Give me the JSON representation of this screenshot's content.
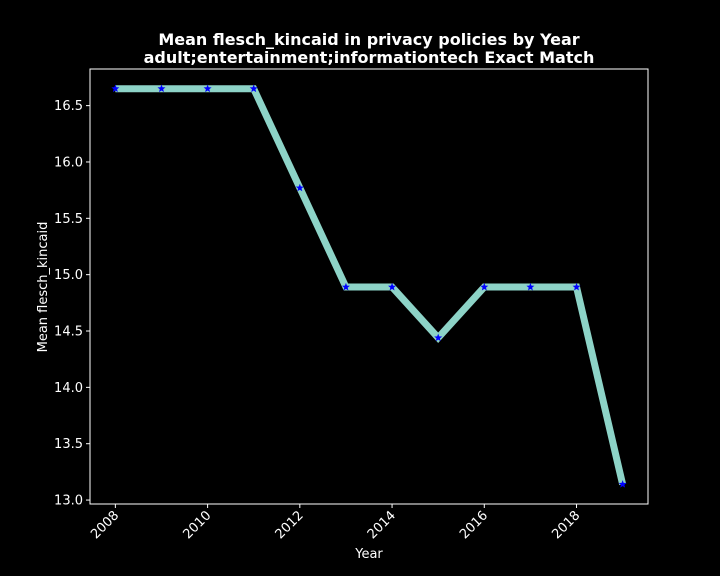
{
  "chart_data": {
    "type": "line",
    "title": [
      "Mean flesch_kincaid in privacy policies by Year",
      "adult;entertainment;informationtech Exact Match"
    ],
    "xlabel": "Year",
    "ylabel": "Mean flesch_kincaid",
    "x": [
      2008,
      2009,
      2010,
      2011,
      2012,
      2013,
      2014,
      2015,
      2016,
      2017,
      2018,
      2019
    ],
    "series": [
      {
        "values": [
          16.65,
          16.65,
          16.65,
          16.65,
          15.77,
          14.89,
          14.89,
          14.44,
          14.89,
          14.89,
          14.89,
          13.14
        ],
        "line_color": "#8dd3c7",
        "marker": "star",
        "marker_color": "#0000ff"
      }
    ],
    "xticks": [
      2008,
      2010,
      2012,
      2014,
      2016,
      2018
    ],
    "yticks": [
      "13.0",
      "13.5",
      "14.0",
      "14.5",
      "15.0",
      "15.5",
      "16.0",
      "16.5"
    ],
    "xlim": [
      2007.45,
      2019.55
    ],
    "ylim": [
      12.965,
      16.825
    ],
    "grid": false,
    "background": "#000000",
    "axis_color": "#ffffff"
  }
}
